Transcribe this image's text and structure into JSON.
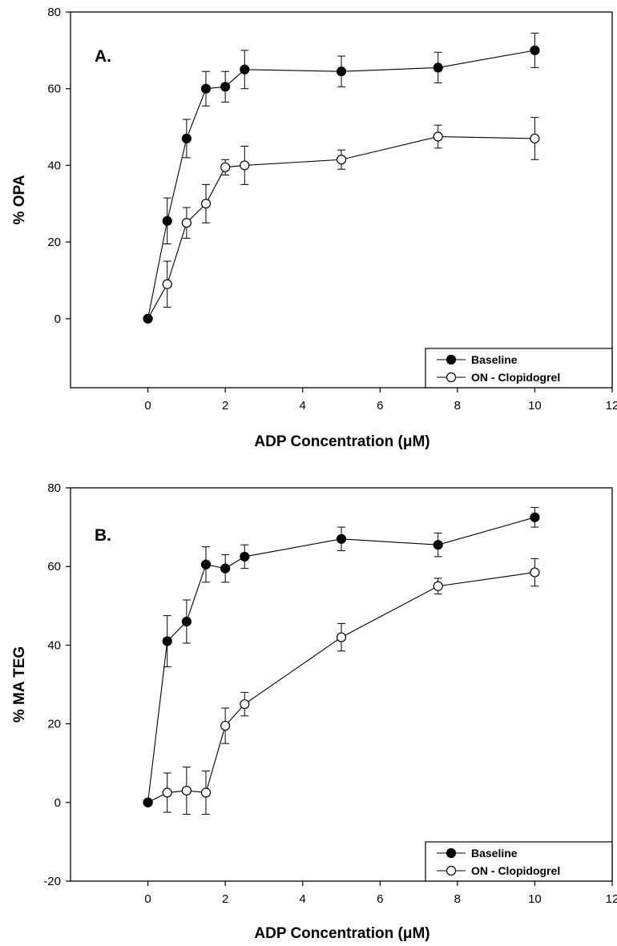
{
  "chart_data": [
    {
      "type": "line",
      "panel_label": "A.",
      "xlabel": "ADP Concentration (μM)",
      "ylabel": "% OPA",
      "xlim": [
        -2,
        12
      ],
      "ylim": [
        -18,
        80
      ],
      "xticks": [
        0,
        2,
        4,
        6,
        8,
        10,
        12
      ],
      "yticks": [
        0,
        20,
        40,
        60,
        80
      ],
      "legend_position": "bottom-right",
      "grid": false,
      "series": [
        {
          "name": "Baseline",
          "marker": "filled-circle",
          "color": "#000000",
          "x": [
            0,
            0.5,
            1,
            1.5,
            2,
            2.5,
            5,
            7.5,
            10
          ],
          "y": [
            0,
            25.5,
            47,
            60,
            60.5,
            65,
            64.5,
            65.5,
            70
          ],
          "error": [
            0,
            6,
            5,
            4.5,
            4,
            5,
            4,
            4,
            4.5
          ]
        },
        {
          "name": "ON - Clopidogrel",
          "marker": "open-circle",
          "color": "#000000",
          "x": [
            0,
            0.5,
            1,
            1.5,
            2,
            2.5,
            5,
            7.5,
            10
          ],
          "y": [
            0,
            9,
            25,
            30,
            39.5,
            40,
            41.5,
            47.5,
            47
          ],
          "error": [
            0,
            6,
            4,
            5,
            2,
            5,
            2.5,
            3,
            5.5
          ]
        }
      ]
    },
    {
      "type": "line",
      "panel_label": "B.",
      "xlabel": "ADP Concentration (μM)",
      "ylabel": "% MA TEG",
      "xlim": [
        -2,
        12
      ],
      "ylim": [
        -20,
        80
      ],
      "xticks": [
        0,
        2,
        4,
        6,
        8,
        10,
        12
      ],
      "yticks": [
        -20,
        0,
        20,
        40,
        60,
        80
      ],
      "legend_position": "bottom-right",
      "grid": false,
      "series": [
        {
          "name": "Baseline",
          "marker": "filled-circle",
          "color": "#000000",
          "x": [
            0,
            0.5,
            1,
            1.5,
            2,
            2.5,
            5,
            7.5,
            10
          ],
          "y": [
            0,
            41,
            46,
            60.5,
            59.5,
            62.5,
            67,
            65.5,
            72.5
          ],
          "error": [
            0,
            6.5,
            5.5,
            4.5,
            3.5,
            3,
            3,
            3,
            2.5
          ]
        },
        {
          "name": "ON - Clopidogrel",
          "marker": "open-circle",
          "color": "#000000",
          "x": [
            0,
            0.5,
            1,
            1.5,
            2,
            2.5,
            5,
            7.5,
            10
          ],
          "y": [
            0,
            2.5,
            3,
            2.5,
            19.5,
            25,
            42,
            55,
            58.5
          ],
          "error": [
            0,
            5,
            6,
            5.5,
            4.5,
            3,
            3.5,
            2,
            3.5
          ]
        }
      ]
    }
  ]
}
